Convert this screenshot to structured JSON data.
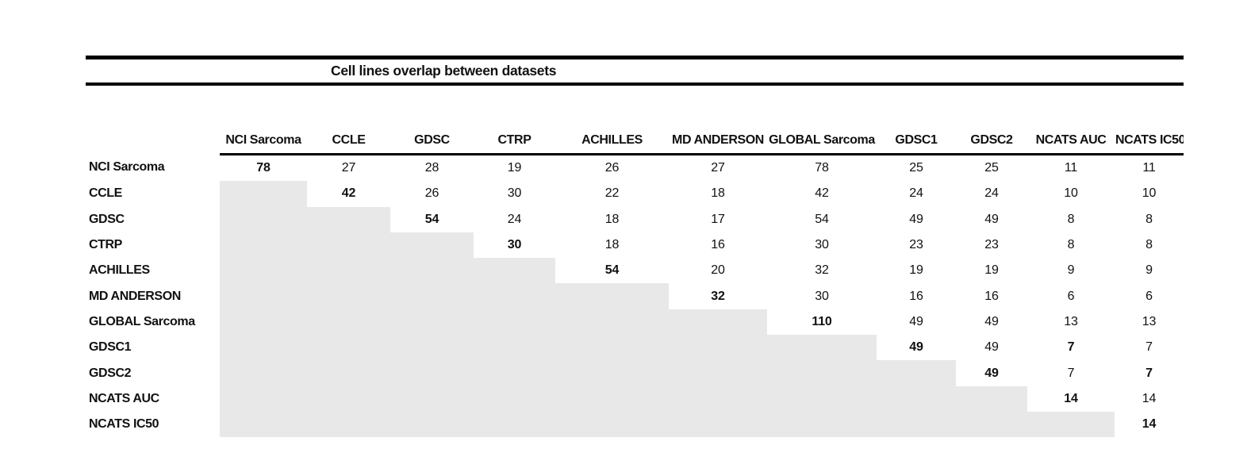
{
  "colors": {
    "empty_cell_bg": "#e8e8e8",
    "rule": "#000000",
    "text": "#111111"
  },
  "table": {
    "title": "Cell lines overlap between datasets",
    "columns": [
      "NCI Sarcoma",
      "CCLE",
      "GDSC",
      "CTRP",
      "ACHILLES",
      "MD ANDERSON",
      "GLOBAL Sarcoma",
      "GDSC1",
      "GDSC2",
      "NCATS AUC",
      "NCATS IC50"
    ],
    "rows": [
      {
        "label": "NCI Sarcoma",
        "cells": [
          {
            "v": "78",
            "b": true
          },
          {
            "v": "27"
          },
          {
            "v": "28"
          },
          {
            "v": "19"
          },
          {
            "v": "26"
          },
          {
            "v": "27"
          },
          {
            "v": "78"
          },
          {
            "v": "25"
          },
          {
            "v": "25"
          },
          {
            "v": "11"
          },
          {
            "v": "11"
          }
        ]
      },
      {
        "label": "CCLE",
        "cells": [
          null,
          {
            "v": "42",
            "b": true
          },
          {
            "v": "26"
          },
          {
            "v": "30"
          },
          {
            "v": "22"
          },
          {
            "v": "18"
          },
          {
            "v": "42"
          },
          {
            "v": "24"
          },
          {
            "v": "24"
          },
          {
            "v": "10"
          },
          {
            "v": "10"
          }
        ]
      },
      {
        "label": "GDSC",
        "cells": [
          null,
          null,
          {
            "v": "54",
            "b": true
          },
          {
            "v": "24"
          },
          {
            "v": "18"
          },
          {
            "v": "17"
          },
          {
            "v": "54"
          },
          {
            "v": "49"
          },
          {
            "v": "49"
          },
          {
            "v": "8"
          },
          {
            "v": "8"
          }
        ]
      },
      {
        "label": "CTRP",
        "cells": [
          null,
          null,
          null,
          {
            "v": "30",
            "b": true
          },
          {
            "v": "18"
          },
          {
            "v": "16"
          },
          {
            "v": "30"
          },
          {
            "v": "23"
          },
          {
            "v": "23"
          },
          {
            "v": "8"
          },
          {
            "v": "8"
          }
        ]
      },
      {
        "label": "ACHILLES",
        "cells": [
          null,
          null,
          null,
          null,
          {
            "v": "54",
            "b": true
          },
          {
            "v": "20"
          },
          {
            "v": "32"
          },
          {
            "v": "19"
          },
          {
            "v": "19"
          },
          {
            "v": "9"
          },
          {
            "v": "9"
          }
        ]
      },
      {
        "label": "MD ANDERSON",
        "cells": [
          null,
          null,
          null,
          null,
          null,
          {
            "v": "32",
            "b": true
          },
          {
            "v": "30"
          },
          {
            "v": "16"
          },
          {
            "v": "16"
          },
          {
            "v": "6"
          },
          {
            "v": "6"
          }
        ]
      },
      {
        "label": "GLOBAL Sarcoma",
        "cells": [
          null,
          null,
          null,
          null,
          null,
          null,
          {
            "v": "110",
            "b": true
          },
          {
            "v": "49"
          },
          {
            "v": "49"
          },
          {
            "v": "13"
          },
          {
            "v": "13"
          }
        ]
      },
      {
        "label": "GDSC1",
        "cells": [
          null,
          null,
          null,
          null,
          null,
          null,
          null,
          {
            "v": "49",
            "b": true
          },
          {
            "v": "49"
          },
          {
            "v": "7",
            "b": true
          },
          {
            "v": "7"
          }
        ]
      },
      {
        "label": "GDSC2",
        "cells": [
          null,
          null,
          null,
          null,
          null,
          null,
          null,
          null,
          {
            "v": "49",
            "b": true
          },
          {
            "v": "7"
          },
          {
            "v": "7",
            "b": true
          }
        ]
      },
      {
        "label": "NCATS AUC",
        "cells": [
          null,
          null,
          null,
          null,
          null,
          null,
          null,
          null,
          null,
          {
            "v": "14",
            "b": true
          },
          {
            "v": "14"
          }
        ]
      },
      {
        "label": "NCATS IC50",
        "cells": [
          null,
          null,
          null,
          null,
          null,
          null,
          null,
          null,
          null,
          null,
          {
            "v": "14",
            "b": true
          }
        ]
      }
    ]
  }
}
